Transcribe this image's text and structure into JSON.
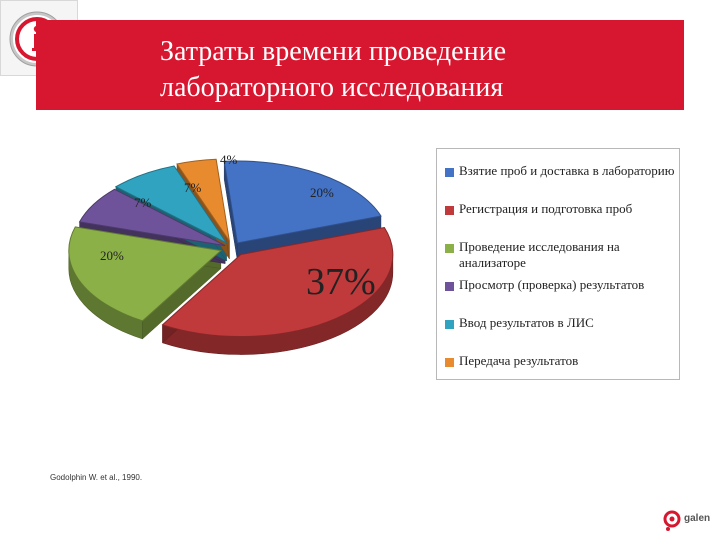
{
  "header": {
    "title_line_1": "Затраты времени проведение",
    "title_line_2": "лабораторного исследования",
    "banner_color": "#d7172f",
    "info_icon": "info-icon"
  },
  "chart_data": {
    "type": "pie",
    "title": "",
    "legend_position": "right",
    "slices": [
      {
        "name": "Взятие проб и доставка в лабораторию",
        "value": 20,
        "label": "20%",
        "color": "#4472c4"
      },
      {
        "name": "Регистрация и подготовка проб",
        "value": 37,
        "label": "37%",
        "color": "#c0393b"
      },
      {
        "name": "Проведение исследования на анализаторе",
        "value": 20,
        "label": "20%",
        "color": "#8cb048"
      },
      {
        "name": "Просмотр (проверка) результатов",
        "value": 7,
        "label": "7%",
        "color": "#6e539a"
      },
      {
        "name": "Ввод результатов в ЛИС",
        "value": 7,
        "label": "7%",
        "color": "#30a3c0"
      },
      {
        "name": "Передача результатов",
        "value": 4,
        "label": "4%",
        "color": "#e88a2e"
      }
    ]
  },
  "footer": {
    "citation": "Godolphin W. et al., 1990.",
    "logo_text": "galen"
  }
}
